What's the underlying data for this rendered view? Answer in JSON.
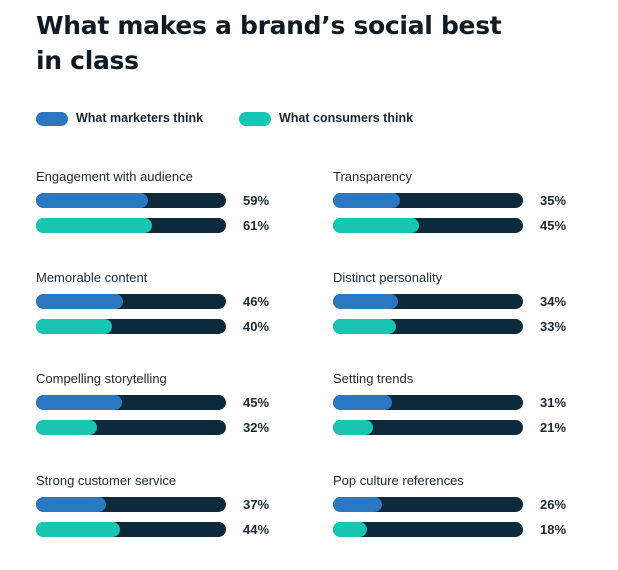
{
  "colors": {
    "marketers": "#2b78c2",
    "consumers": "#17c5b3",
    "track": "#0d2a3a"
  },
  "chart_data": {
    "type": "bar",
    "title": "What makes a brand’s social best in class",
    "unit": "%",
    "legend": [
      "What marketers think",
      "What consumers think"
    ],
    "categories": [
      "Engagement with audience",
      "Transparency",
      "Memorable content",
      "Distinct personality",
      "Compelling storytelling",
      "Setting trends",
      "Strong customer service",
      "Pop culture references"
    ],
    "series": [
      {
        "name": "What marketers think",
        "values": [
          59,
          35,
          46,
          34,
          45,
          31,
          37,
          26
        ]
      },
      {
        "name": "What consumers think",
        "values": [
          61,
          45,
          40,
          33,
          32,
          21,
          44,
          18
        ]
      }
    ],
    "value_labels": {
      "marketers": [
        "59%",
        "35%",
        "46%",
        "34%",
        "45%",
        "31%",
        "37%",
        "26%"
      ],
      "consumers": [
        "61%",
        "45%",
        "40%",
        "33%",
        "32%",
        "21%",
        "44%",
        "18%"
      ]
    },
    "xlim": [
      0,
      100
    ]
  }
}
